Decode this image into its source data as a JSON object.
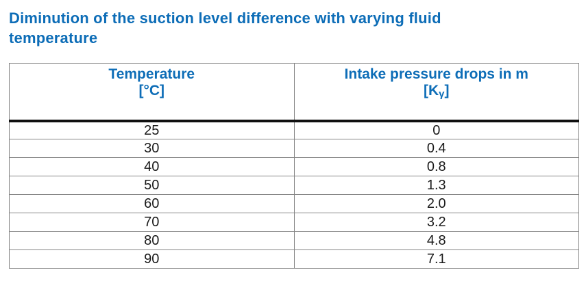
{
  "title": {
    "line1": "Diminution of the suction level difference with varying fluid",
    "line2": "temperature",
    "full": "Diminution of the suction level difference with varying fluid temperature"
  },
  "table": {
    "header": {
      "col1": {
        "line1": "Temperature",
        "line2": "[°C]"
      },
      "col2": {
        "line1": "Intake pressure drops in m",
        "unit_open": "[K",
        "unit_sub": "γ",
        "unit_close": "]"
      }
    },
    "rows": [
      [
        "25",
        "0"
      ],
      [
        "30",
        "0.4"
      ],
      [
        "40",
        "0.8"
      ],
      [
        "50",
        "1.3"
      ],
      [
        "60",
        "2.0"
      ],
      [
        "70",
        "3.2"
      ],
      [
        "80",
        "4.8"
      ],
      [
        "90",
        "7.1"
      ]
    ]
  },
  "chart_data": {
    "type": "table",
    "title": "Diminution of the suction level difference with varying fluid temperature",
    "columns": [
      "Temperature [°C]",
      "Intake pressure drops in m [Kγ]"
    ],
    "rows": [
      [
        25,
        0
      ],
      [
        30,
        0.4
      ],
      [
        40,
        0.8
      ],
      [
        50,
        1.3
      ],
      [
        60,
        2.0
      ],
      [
        70,
        3.2
      ],
      [
        80,
        4.8
      ],
      [
        90,
        7.1
      ]
    ]
  },
  "colors": {
    "accent_blue": "#0d6db7",
    "body_text": "#1a1a1a",
    "grid_border": "#848484",
    "header_rule": "#101010",
    "background": "#ffffff"
  }
}
